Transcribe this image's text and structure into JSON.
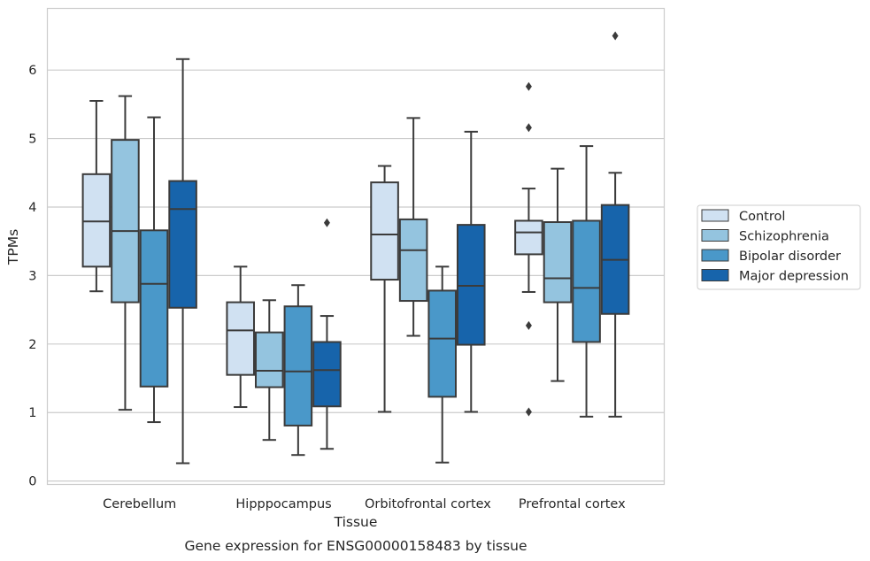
{
  "caption": "Gene expression for ENSG00000158483 by tissue",
  "chart_data": {
    "type": "box",
    "xlabel": "Tissue",
    "ylabel": "TPMs",
    "ylim": [
      -0.05,
      6.9
    ],
    "yticks": [
      0,
      1,
      2,
      3,
      4,
      5,
      6
    ],
    "grid": "horizontal",
    "legend_position": "right",
    "categories": [
      "Cerebellum",
      "Hipppocampus",
      "Orbitofrontal cortex",
      "Prefrontal cortex"
    ],
    "series": [
      {
        "name": "Control",
        "color": "#d0e1f2",
        "boxes": [
          {
            "whislo": 2.77,
            "q1": 3.13,
            "med": 3.79,
            "q3": 4.48,
            "whishi": 5.55,
            "fliers": []
          },
          {
            "whislo": 1.08,
            "q1": 1.55,
            "med": 2.2,
            "q3": 2.61,
            "whishi": 3.13,
            "fliers": []
          },
          {
            "whislo": 1.01,
            "q1": 2.94,
            "med": 3.6,
            "q3": 4.36,
            "whishi": 4.6,
            "fliers": []
          },
          {
            "whislo": 2.76,
            "q1": 3.31,
            "med": 3.63,
            "q3": 3.8,
            "whishi": 4.27,
            "fliers": [
              5.76,
              5.16,
              2.27,
              1.01
            ]
          }
        ]
      },
      {
        "name": "Schizophrenia",
        "color": "#94c4df",
        "boxes": [
          {
            "whislo": 1.04,
            "q1": 2.61,
            "med": 3.65,
            "q3": 4.98,
            "whishi": 5.62,
            "fliers": []
          },
          {
            "whislo": 0.6,
            "q1": 1.37,
            "med": 1.61,
            "q3": 2.17,
            "whishi": 2.64,
            "fliers": []
          },
          {
            "whislo": 2.12,
            "q1": 2.63,
            "med": 3.37,
            "q3": 3.82,
            "whishi": 5.3,
            "fliers": []
          },
          {
            "whislo": 1.46,
            "q1": 2.61,
            "med": 2.96,
            "q3": 3.78,
            "whishi": 4.56,
            "fliers": []
          }
        ]
      },
      {
        "name": "Bipolar disorder",
        "color": "#4a98c9",
        "boxes": [
          {
            "whislo": 0.86,
            "q1": 1.38,
            "med": 2.88,
            "q3": 3.66,
            "whishi": 5.31,
            "fliers": []
          },
          {
            "whislo": 0.38,
            "q1": 0.81,
            "med": 1.6,
            "q3": 2.55,
            "whishi": 2.86,
            "fliers": []
          },
          {
            "whislo": 0.27,
            "q1": 1.23,
            "med": 2.08,
            "q3": 2.78,
            "whishi": 3.13,
            "fliers": []
          },
          {
            "whislo": 0.94,
            "q1": 2.03,
            "med": 2.82,
            "q3": 3.8,
            "whishi": 4.89,
            "fliers": []
          }
        ]
      },
      {
        "name": "Major depression",
        "color": "#1764ab",
        "boxes": [
          {
            "whislo": 0.26,
            "q1": 2.53,
            "med": 3.97,
            "q3": 4.38,
            "whishi": 6.16,
            "fliers": []
          },
          {
            "whislo": 0.47,
            "q1": 1.09,
            "med": 1.62,
            "q3": 2.03,
            "whishi": 2.41,
            "fliers": [
              3.77
            ]
          },
          {
            "whislo": 1.01,
            "q1": 1.99,
            "med": 2.85,
            "q3": 3.74,
            "whishi": 5.1,
            "fliers": []
          },
          {
            "whislo": 0.94,
            "q1": 2.44,
            "med": 3.23,
            "q3": 4.03,
            "whishi": 4.5,
            "fliers": [
              6.5
            ]
          }
        ]
      }
    ]
  }
}
